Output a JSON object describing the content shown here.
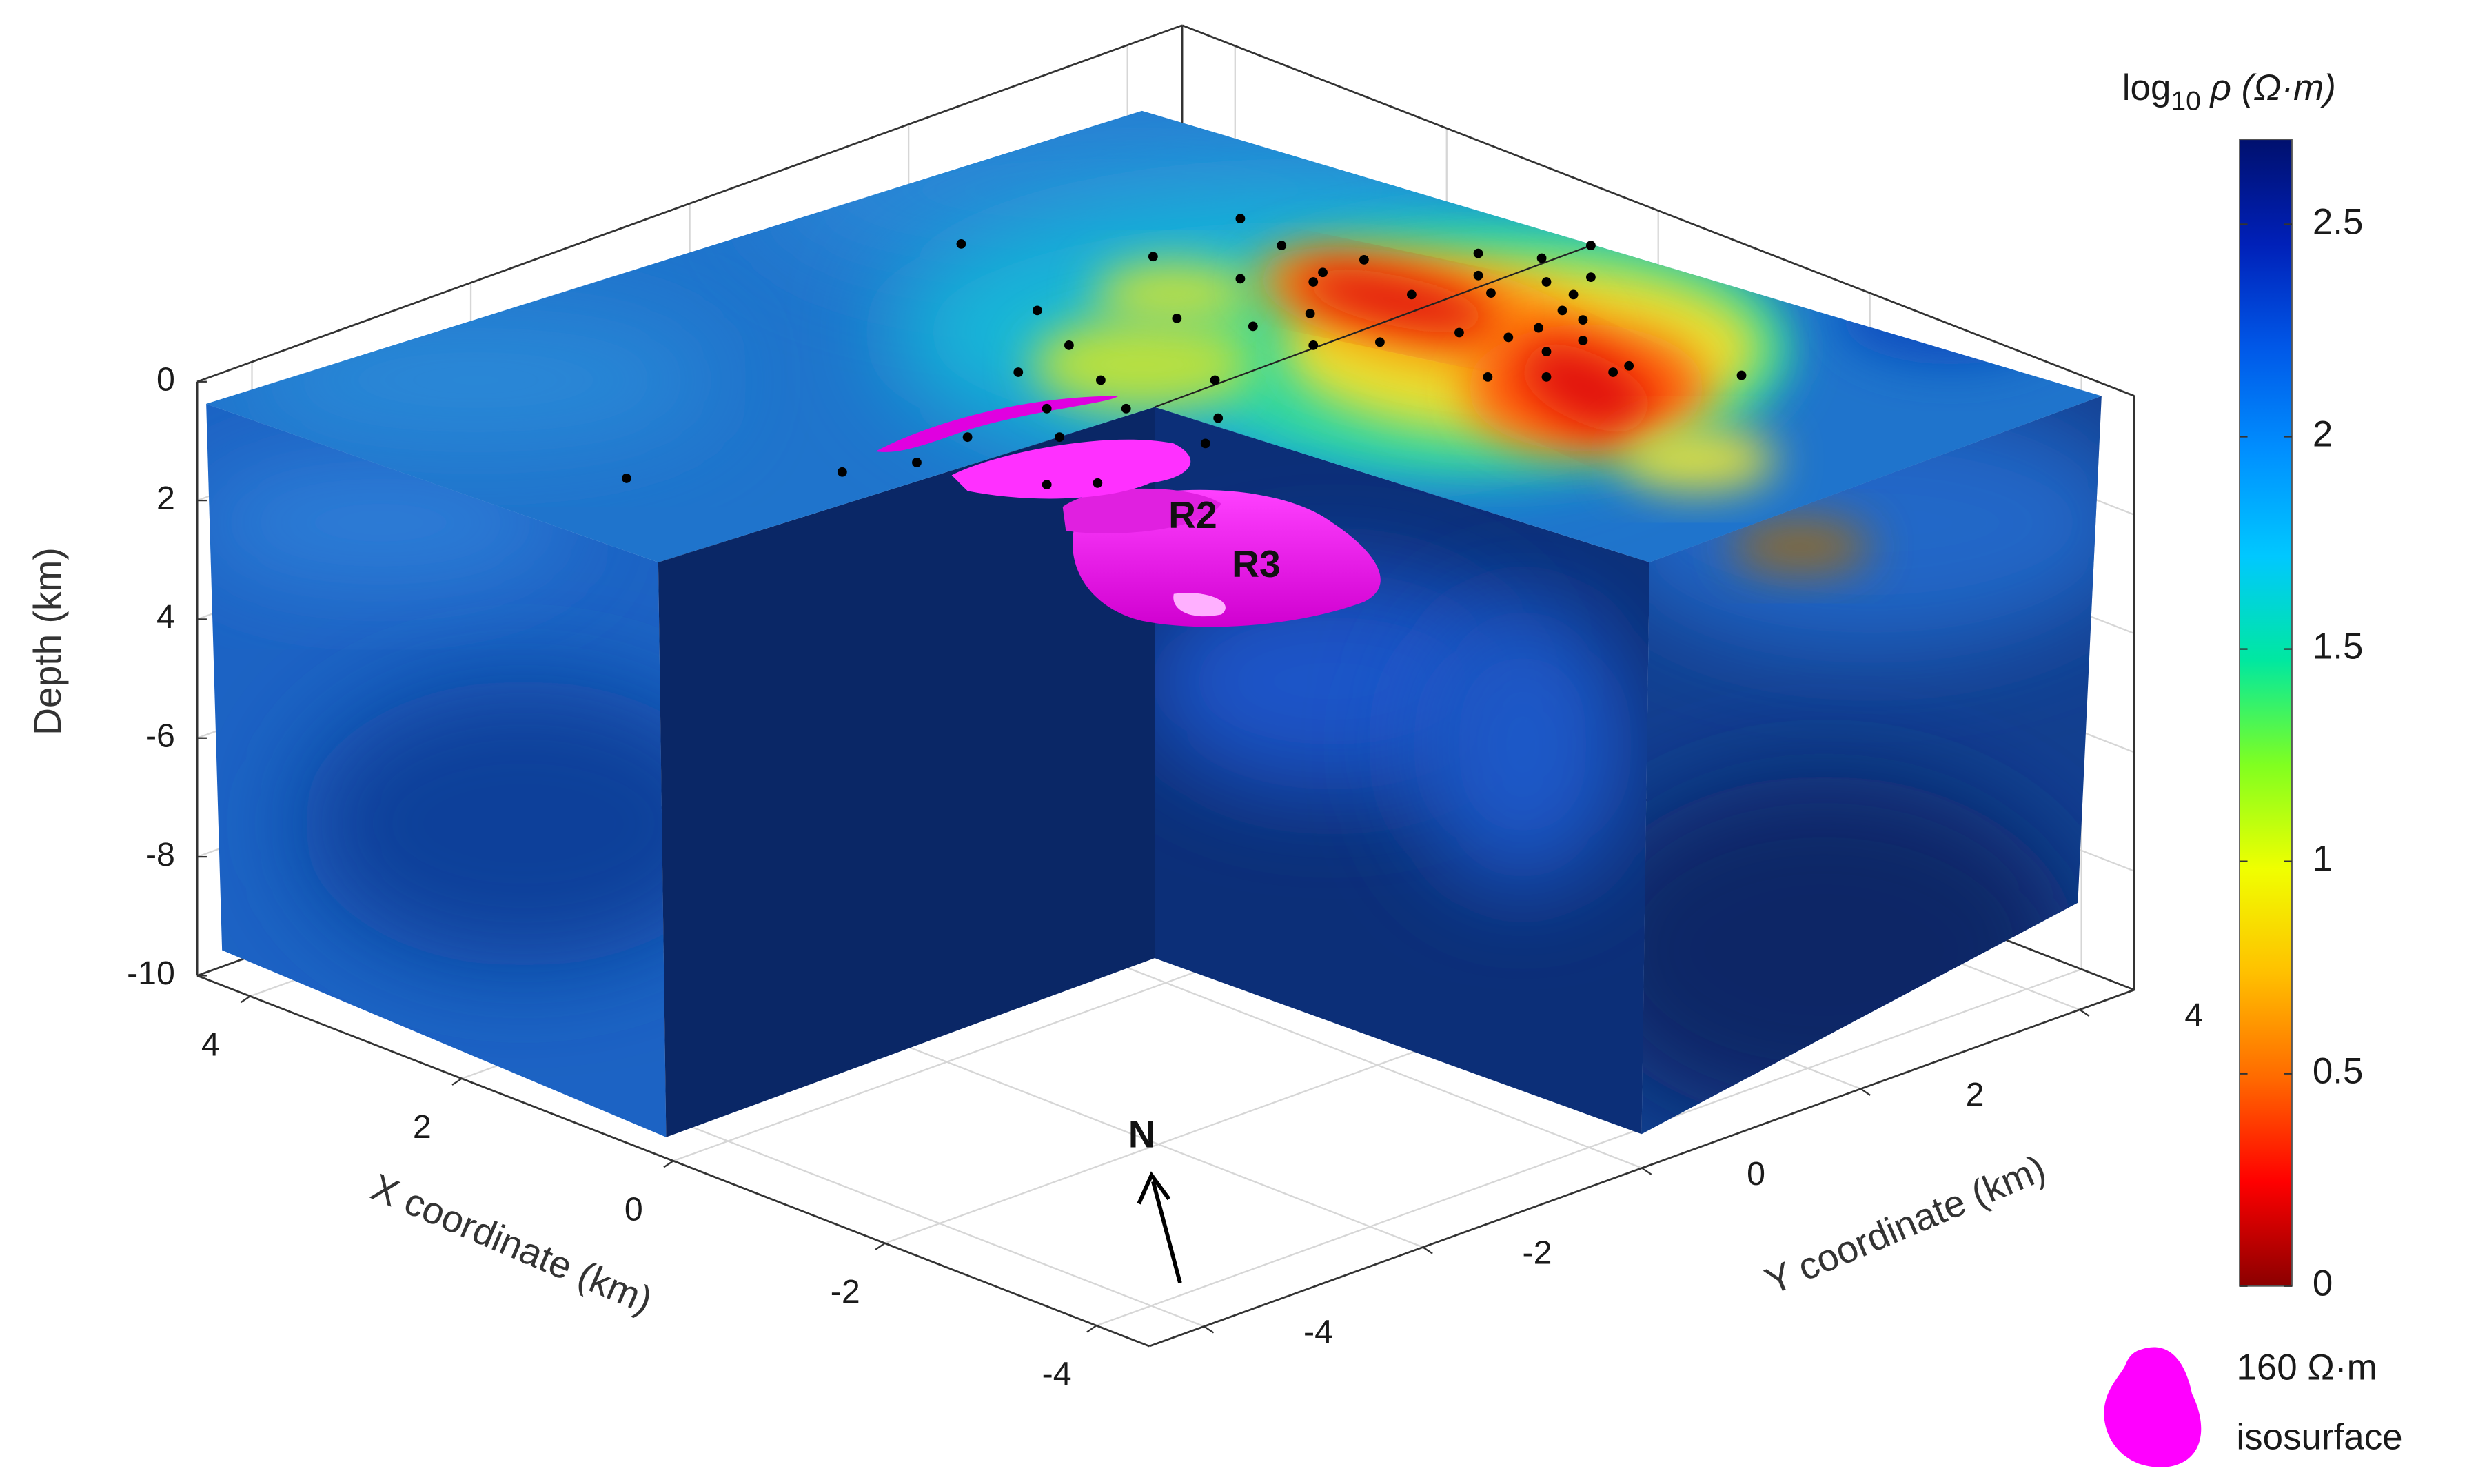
{
  "chart_data": {
    "type": "volume-3d",
    "xlabel": "X coordinate (km)",
    "ylabel": "Y coordinate (km)",
    "zlabel": "Depth (km)",
    "xlim": [
      -4.5,
      4.5
    ],
    "xticks": [
      -4,
      -2,
      0,
      2,
      4
    ],
    "ylim": [
      -4.5,
      4.5
    ],
    "yticks": [
      -4,
      -2,
      0,
      2,
      4
    ],
    "zlim": [
      -10,
      0
    ],
    "zticks": [
      -10,
      -8,
      -6,
      {
        "value": -4,
        "label": "4"
      },
      {
        "value": -2,
        "label": "2"
      },
      0
    ],
    "grid": true,
    "colorbar": {
      "label_base": "log",
      "label_subscript": "10",
      "label_rest": "ρ (Ω·m)",
      "clim": [
        0,
        2.7
      ],
      "ticks": [
        0,
        0.5,
        1,
        1.5,
        2,
        2.5
      ],
      "colormap": [
        "#8b0000",
        "#ff0000",
        "#ff6a00",
        "#ffc000",
        "#f0ff00",
        "#80ff20",
        "#00e8a0",
        "#00c8ff",
        "#0090ff",
        "#0058e8",
        "#0020b8",
        "#00106e"
      ]
    },
    "isosurface": {
      "label_value": "160 Ω·m",
      "label_text": "isosurface",
      "color": "#ff00ff"
    },
    "annotations": [
      "R2",
      "R3"
    ],
    "north_label": "N"
  }
}
